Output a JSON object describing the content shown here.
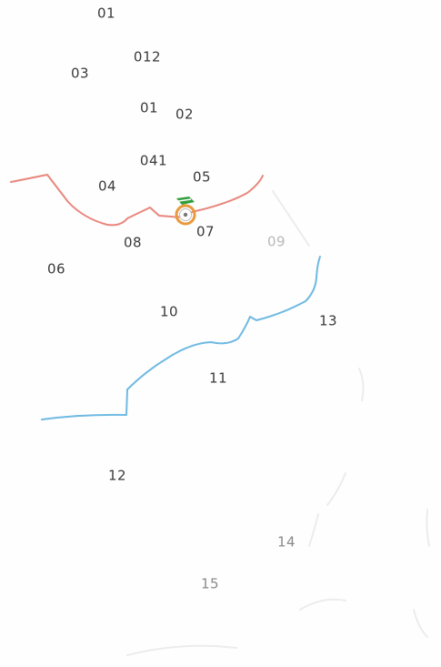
{
  "map": {
    "labels": [
      {
        "key": "l01a",
        "text": "01"
      },
      {
        "key": "l012",
        "text": "012"
      },
      {
        "key": "l03",
        "text": "03"
      },
      {
        "key": "l01b",
        "text": "01"
      },
      {
        "key": "l02",
        "text": "02"
      },
      {
        "key": "l041",
        "text": "041"
      },
      {
        "key": "l05",
        "text": "05"
      },
      {
        "key": "l04",
        "text": "04"
      },
      {
        "key": "l07",
        "text": "07"
      },
      {
        "key": "l08",
        "text": "08"
      },
      {
        "key": "l09",
        "text": "09"
      },
      {
        "key": "l06",
        "text": "06"
      },
      {
        "key": "l10",
        "text": "10"
      },
      {
        "key": "l13",
        "text": "13"
      },
      {
        "key": "l11",
        "text": "11"
      },
      {
        "key": "l12",
        "text": "12"
      },
      {
        "key": "l14",
        "text": "14"
      },
      {
        "key": "l15",
        "text": "15"
      }
    ],
    "colors": {
      "red_route": "#e8867c",
      "blue_route": "#6fb9e2",
      "marker_ring": "#e89a3c",
      "marker_flag": "#2f9e3c",
      "label": "#3a3a3a"
    },
    "icons": {
      "marker": "location-pin-icon"
    }
  }
}
